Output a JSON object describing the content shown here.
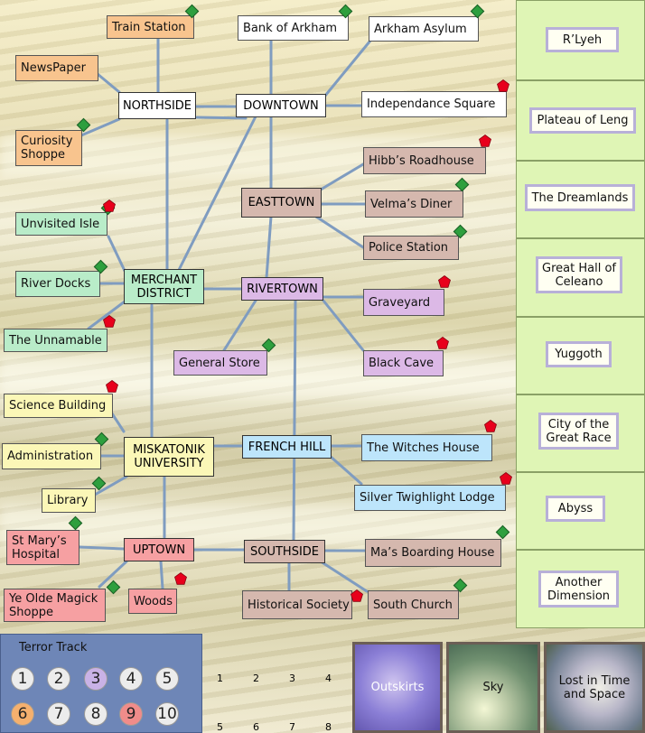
{
  "streets": {
    "northside": "NORTHSIDE",
    "downtown": "DOWNTOWN",
    "easttown": "EASTTOWN",
    "merchant_district": "MERCHANT DISTRICT",
    "rivertown": "RIVERTOWN",
    "miskatonik_university": "MISKATONIK UNIVERSITY",
    "french_hill": "FRENCH HILL",
    "uptown": "UPTOWN",
    "southside": "SOUTHSIDE"
  },
  "locations": {
    "train_station": "Train Station",
    "bank_of_arkham": "Bank of Arkham",
    "arkham_asylum": "Arkham Asylum",
    "newspaper": "NewsPaper",
    "independance_square": "Independance Square",
    "curiosity_shoppe": "Curiosity Shoppe",
    "hibbs_roadhouse": "Hibb’s Roadhouse",
    "velmas_diner": "Velma’s Diner",
    "unvisited_isle": "Unvisited Isle",
    "police_station": "Police Station",
    "river_docks": "River Docks",
    "graveyard": "Graveyard",
    "the_unnamable": "The Unnamable",
    "general_store": "General Store",
    "black_cave": "Black Cave",
    "science_building": "Science Building",
    "the_witches_house": "The Witches House",
    "administration": "Administration",
    "silver_twighlight_lodge": "Silver Twighlight Lodge",
    "library": "Library",
    "st_marys_hospital": "St Mary’s Hospital",
    "mas_boarding_house": "Ma’s Boarding House",
    "ye_olde_magick_shoppe": "Ye Olde Magick Shoppe",
    "woods": "Woods",
    "historical_society": "Historical Society",
    "south_church": "South Church"
  },
  "other_worlds": [
    "R’Lyeh",
    "Plateau of Leng",
    "The Dreamlands",
    "Great Hall of Celeano",
    "Yuggoth",
    "City of the Great Race",
    "Abyss",
    "Another Dimension"
  ],
  "terror_track": {
    "title": "Terror Track",
    "values": [
      "1",
      "2",
      "3",
      "4",
      "5",
      "6",
      "7",
      "8",
      "9",
      "10"
    ]
  },
  "slot_numbers_row1": [
    "1",
    "2",
    "3",
    "4"
  ],
  "slot_numbers_row2": [
    "5",
    "6",
    "7",
    "8"
  ],
  "special_areas": {
    "outskirts": "Outskirts",
    "sky": "Sky",
    "lost_in_time_and_space": "Lost in Time and Space"
  },
  "colors": {
    "street": "#ffffff",
    "northside_locations": "#f8c48e",
    "downtown_locations": "#ffffff",
    "easttown_locations": "#d5b8ae",
    "merchant_locations": "#b9ecc9",
    "rivertown_locations": "#dcb9e6",
    "french_hill_locations": "#bde5fb",
    "university_locations": "#fbf7b7",
    "uptown_locations": "#f6a0a2",
    "stable_marker": "#2e9f3e",
    "unstable_marker": "#e8001c",
    "other_world_panel": "#dff5b5",
    "terror_track_panel": "#6e86b7"
  },
  "icons": {
    "stable": "green-diamond-icon",
    "unstable": "red-pentagon-icon"
  }
}
